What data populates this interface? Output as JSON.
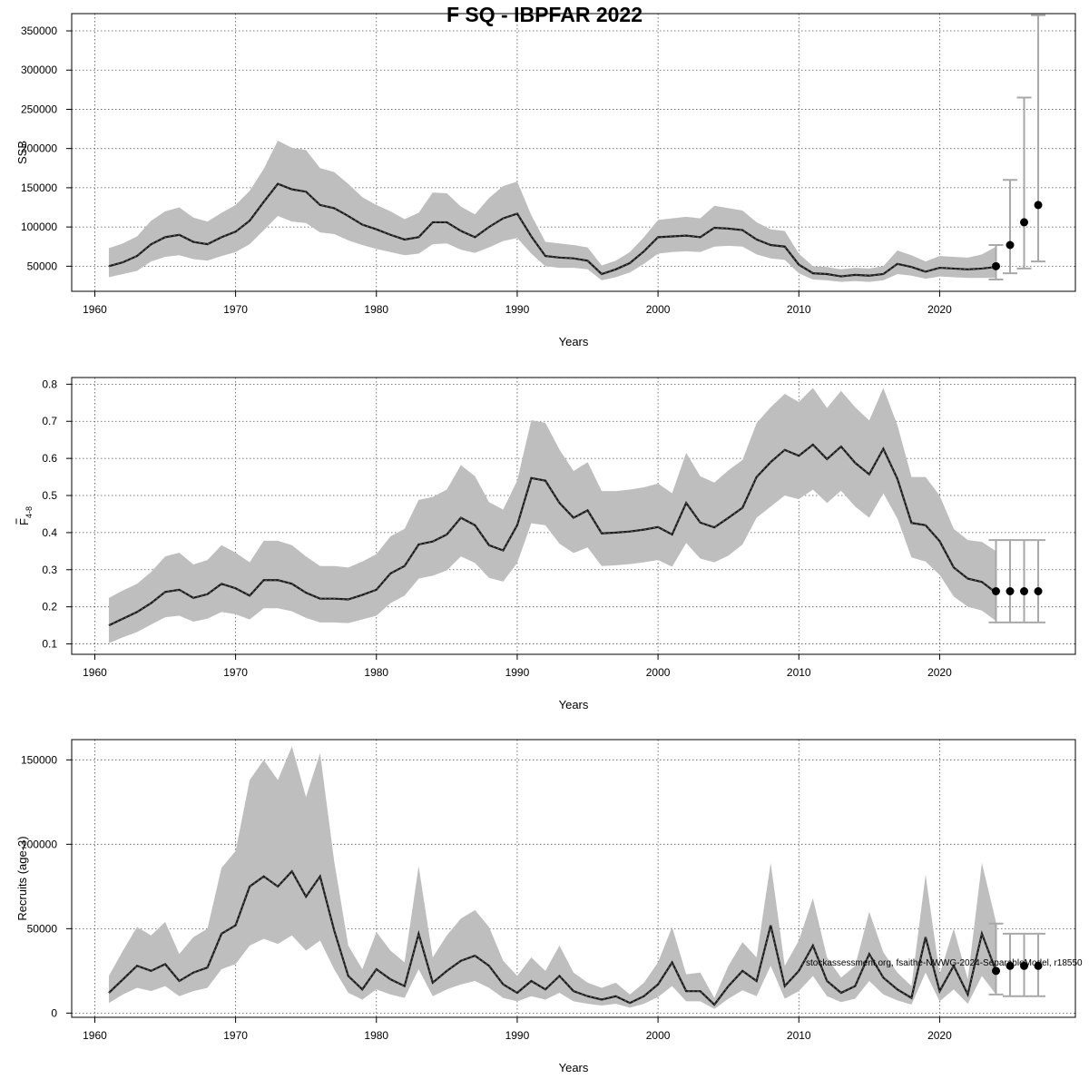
{
  "title": "F SQ - IBPFAR 2022",
  "watermark": "stockassessment.org, fsaithe-NWWG-2024-SeparableModel, r18550",
  "colors": {
    "band": "#bebebe",
    "line": "#1a1a1a",
    "ci": "#a8a8a8",
    "grid": "#555555",
    "point": "#000000"
  },
  "chart_data": [
    {
      "type": "line",
      "name": "ssb",
      "title": "",
      "xlabel": "Years",
      "ylabel": "SSB",
      "xlim": [
        1961,
        2027
      ],
      "ylim": [
        18000,
        372000
      ],
      "xticks": [
        1960,
        1970,
        1980,
        1990,
        2000,
        2010,
        2020
      ],
      "yticks": [
        50000,
        100000,
        150000,
        200000,
        250000,
        300000,
        350000
      ],
      "x": [
        1961,
        1962,
        1963,
        1964,
        1965,
        1966,
        1967,
        1968,
        1969,
        1970,
        1971,
        1972,
        1973,
        1974,
        1975,
        1976,
        1977,
        1978,
        1979,
        1980,
        1981,
        1982,
        1983,
        1984,
        1985,
        1986,
        1987,
        1988,
        1989,
        1990,
        1991,
        1992,
        1993,
        1994,
        1995,
        1996,
        1997,
        1998,
        1999,
        2000,
        2001,
        2002,
        2003,
        2004,
        2005,
        2006,
        2007,
        2008,
        2009,
        2010,
        2011,
        2012,
        2013,
        2014,
        2015,
        2016,
        2017,
        2018,
        2019,
        2020,
        2021,
        2022,
        2023,
        2024
      ],
      "estimate": [
        50000,
        55000,
        63000,
        78000,
        87000,
        90000,
        81000,
        78000,
        87000,
        94000,
        108000,
        132000,
        155000,
        148000,
        145000,
        128000,
        124000,
        114000,
        103000,
        97000,
        90000,
        84000,
        87000,
        106000,
        106000,
        95000,
        87000,
        100000,
        111000,
        117000,
        88000,
        63000,
        61000,
        60000,
        57000,
        40000,
        46000,
        54000,
        69000,
        87000,
        88000,
        89000,
        87000,
        99000,
        98000,
        96000,
        84000,
        77000,
        75000,
        52000,
        41000,
        40000,
        37000,
        39000,
        38000,
        40000,
        53000,
        49000,
        43000,
        48000,
        47000,
        46000,
        47000,
        49000
      ],
      "lower": [
        36000,
        40000,
        44000,
        56000,
        62000,
        64000,
        59000,
        57000,
        63000,
        68000,
        78000,
        96000,
        114000,
        107000,
        105000,
        93000,
        91000,
        83000,
        77000,
        72000,
        68000,
        64000,
        66000,
        78000,
        79000,
        71000,
        67000,
        74000,
        82000,
        86000,
        66000,
        50000,
        48000,
        48000,
        46000,
        32000,
        36000,
        42000,
        53000,
        66000,
        68000,
        69000,
        68000,
        75000,
        76000,
        75000,
        65000,
        60000,
        58000,
        41000,
        33000,
        32000,
        30000,
        31000,
        30000,
        32000,
        40000,
        38000,
        34000,
        37000,
        36000,
        35000,
        35000,
        35000
      ],
      "upper": [
        73000,
        79000,
        88000,
        108000,
        120000,
        125000,
        112000,
        107000,
        118000,
        128000,
        146000,
        174000,
        210000,
        201000,
        198000,
        175000,
        170000,
        155000,
        138000,
        128000,
        120000,
        110000,
        118000,
        144000,
        143000,
        126000,
        116000,
        137000,
        152000,
        158000,
        115000,
        81000,
        79000,
        77000,
        74000,
        51000,
        57000,
        68000,
        87000,
        109000,
        111000,
        113000,
        111000,
        127000,
        124000,
        121000,
        106000,
        97000,
        95000,
        66000,
        50000,
        49000,
        46000,
        48000,
        47000,
        50000,
        70000,
        64000,
        56000,
        63000,
        62000,
        61000,
        65000,
        75000
      ],
      "forecast": [
        {
          "year": 2024,
          "median": 50000,
          "low": 33000,
          "high": 77000
        },
        {
          "year": 2025,
          "median": 77000,
          "low": 41000,
          "high": 160000
        },
        {
          "year": 2026,
          "median": 106000,
          "low": 47000,
          "high": 265000
        },
        {
          "year": 2027,
          "median": 128000,
          "low": 56000,
          "high": 370000
        }
      ]
    },
    {
      "type": "line",
      "name": "fbar",
      "title": "",
      "xlabel": "Years",
      "ylabel": "F4-8",
      "xlim": [
        1961,
        2027
      ],
      "ylim": [
        0.072,
        0.818
      ],
      "xticks": [
        1960,
        1970,
        1980,
        1990,
        2000,
        2010,
        2020
      ],
      "yticks": [
        0.1,
        0.2,
        0.3,
        0.4,
        0.5,
        0.6,
        0.7,
        0.8
      ],
      "x": [
        1961,
        1962,
        1963,
        1964,
        1965,
        1966,
        1967,
        1968,
        1969,
        1970,
        1971,
        1972,
        1973,
        1974,
        1975,
        1976,
        1977,
        1978,
        1979,
        1980,
        1981,
        1982,
        1983,
        1984,
        1985,
        1986,
        1987,
        1988,
        1989,
        1990,
        1991,
        1992,
        1993,
        1994,
        1995,
        1996,
        1997,
        1998,
        1999,
        2000,
        2001,
        2002,
        2003,
        2004,
        2005,
        2006,
        2007,
        2008,
        2009,
        2010,
        2011,
        2012,
        2013,
        2014,
        2015,
        2016,
        2017,
        2018,
        2019,
        2020,
        2021,
        2022,
        2023,
        2024
      ],
      "estimate": [
        0.15,
        0.168,
        0.186,
        0.21,
        0.24,
        0.246,
        0.224,
        0.234,
        0.262,
        0.25,
        0.23,
        0.272,
        0.272,
        0.262,
        0.238,
        0.222,
        0.222,
        0.22,
        0.232,
        0.246,
        0.29,
        0.31,
        0.368,
        0.376,
        0.395,
        0.44,
        0.42,
        0.366,
        0.352,
        0.42,
        0.547,
        0.54,
        0.48,
        0.44,
        0.46,
        0.398,
        0.4,
        0.403,
        0.408,
        0.415,
        0.395,
        0.48,
        0.427,
        0.414,
        0.44,
        0.467,
        0.55,
        0.59,
        0.623,
        0.607,
        0.637,
        0.598,
        0.632,
        0.588,
        0.557,
        0.626,
        0.545,
        0.426,
        0.42,
        0.377,
        0.306,
        0.276,
        0.267,
        0.238
      ],
      "lower": [
        0.102,
        0.118,
        0.132,
        0.152,
        0.172,
        0.176,
        0.16,
        0.168,
        0.186,
        0.18,
        0.166,
        0.196,
        0.196,
        0.188,
        0.17,
        0.158,
        0.158,
        0.156,
        0.166,
        0.176,
        0.21,
        0.23,
        0.276,
        0.284,
        0.298,
        0.336,
        0.318,
        0.278,
        0.268,
        0.318,
        0.425,
        0.42,
        0.37,
        0.345,
        0.36,
        0.31,
        0.312,
        0.315,
        0.32,
        0.326,
        0.308,
        0.372,
        0.33,
        0.32,
        0.338,
        0.368,
        0.44,
        0.47,
        0.5,
        0.49,
        0.516,
        0.48,
        0.513,
        0.47,
        0.44,
        0.506,
        0.438,
        0.333,
        0.322,
        0.286,
        0.228,
        0.2,
        0.19,
        0.162
      ],
      "upper": [
        0.224,
        0.244,
        0.262,
        0.294,
        0.336,
        0.346,
        0.314,
        0.326,
        0.366,
        0.346,
        0.32,
        0.378,
        0.378,
        0.366,
        0.336,
        0.31,
        0.31,
        0.306,
        0.322,
        0.342,
        0.39,
        0.41,
        0.488,
        0.496,
        0.516,
        0.582,
        0.552,
        0.482,
        0.462,
        0.54,
        0.703,
        0.696,
        0.624,
        0.566,
        0.59,
        0.512,
        0.512,
        0.516,
        0.522,
        0.532,
        0.506,
        0.615,
        0.552,
        0.535,
        0.568,
        0.596,
        0.695,
        0.738,
        0.774,
        0.752,
        0.79,
        0.736,
        0.782,
        0.738,
        0.702,
        0.79,
        0.69,
        0.55,
        0.55,
        0.5,
        0.41,
        0.38,
        0.375,
        0.35
      ],
      "forecast": [
        {
          "year": 2024,
          "median": 0.242,
          "low": 0.158,
          "high": 0.38
        },
        {
          "year": 2025,
          "median": 0.242,
          "low": 0.158,
          "high": 0.38
        },
        {
          "year": 2026,
          "median": 0.242,
          "low": 0.158,
          "high": 0.38
        },
        {
          "year": 2027,
          "median": 0.242,
          "low": 0.158,
          "high": 0.38
        }
      ]
    },
    {
      "type": "line",
      "name": "recruits",
      "title": "",
      "xlabel": "Years",
      "ylabel": "Recruits (age-3)",
      "xlim": [
        1961,
        2027
      ],
      "ylim": [
        -2500,
        162000
      ],
      "xticks": [
        1960,
        1970,
        1980,
        1990,
        2000,
        2010,
        2020
      ],
      "yticks": [
        0,
        50000,
        100000,
        150000
      ],
      "x": [
        1961,
        1962,
        1963,
        1964,
        1965,
        1966,
        1967,
        1968,
        1969,
        1970,
        1971,
        1972,
        1973,
        1974,
        1975,
        1976,
        1977,
        1978,
        1979,
        1980,
        1981,
        1982,
        1983,
        1984,
        1985,
        1986,
        1987,
        1988,
        1989,
        1990,
        1991,
        1992,
        1993,
        1994,
        1995,
        1996,
        1997,
        1998,
        1999,
        2000,
        2001,
        2002,
        2003,
        2004,
        2005,
        2006,
        2007,
        2008,
        2009,
        2010,
        2011,
        2012,
        2013,
        2014,
        2015,
        2016,
        2017,
        2018,
        2019,
        2020,
        2021,
        2022,
        2023,
        2024
      ],
      "estimate": [
        12000,
        20000,
        28000,
        25000,
        29000,
        19000,
        24000,
        27000,
        47000,
        52000,
        75000,
        81000,
        75000,
        84000,
        69000,
        81000,
        49000,
        22000,
        14000,
        26000,
        20000,
        16000,
        47000,
        18000,
        25000,
        31000,
        34000,
        28000,
        17000,
        12000,
        19000,
        14000,
        22000,
        13000,
        10000,
        8000,
        10000,
        6000,
        10000,
        17000,
        30000,
        13000,
        13000,
        5000,
        16000,
        25000,
        19000,
        52000,
        16000,
        25000,
        40000,
        19000,
        12000,
        16000,
        35000,
        21000,
        14000,
        9000,
        45000,
        13000,
        28000,
        11000,
        47000,
        25000
      ],
      "lower": [
        6000,
        11000,
        15000,
        13000,
        16000,
        10000,
        13000,
        15000,
        26000,
        29000,
        40000,
        44000,
        41000,
        46000,
        37000,
        43000,
        26000,
        12000,
        8000,
        14000,
        11000,
        9000,
        26000,
        10000,
        14000,
        17000,
        19000,
        15000,
        9000,
        7000,
        10000,
        8000,
        12000,
        7000,
        5500,
        4500,
        5500,
        3200,
        5500,
        9500,
        16000,
        7000,
        7000,
        2500,
        8500,
        13500,
        10000,
        28000,
        8500,
        13000,
        22000,
        10000,
        6500,
        8500,
        19000,
        11000,
        7500,
        5000,
        24000,
        7000,
        14000,
        5500,
        22000,
        11000
      ],
      "upper": [
        22000,
        37000,
        51000,
        46000,
        54000,
        35000,
        45000,
        50000,
        86000,
        96000,
        138000,
        150000,
        138000,
        158000,
        128000,
        154000,
        90000,
        40000,
        26000,
        48000,
        37000,
        30000,
        87000,
        33000,
        46000,
        56000,
        61000,
        51000,
        31000,
        22000,
        33000,
        25000,
        40000,
        24000,
        18000,
        15000,
        18000,
        11000,
        18000,
        30000,
        51000,
        23000,
        24000,
        9000,
        28000,
        42000,
        33000,
        89000,
        28000,
        43000,
        68000,
        33000,
        21000,
        28000,
        60000,
        36000,
        24000,
        16000,
        82000,
        23000,
        50000,
        20000,
        89000,
        54000
      ],
      "forecast": [
        {
          "year": 2024,
          "median": 25000,
          "low": 11000,
          "high": 53000
        },
        {
          "year": 2025,
          "median": 28000,
          "low": 10000,
          "high": 47000
        },
        {
          "year": 2026,
          "median": 28000,
          "low": 10000,
          "high": 47000
        },
        {
          "year": 2027,
          "median": 28000,
          "low": 10000,
          "high": 47000
        }
      ]
    }
  ]
}
